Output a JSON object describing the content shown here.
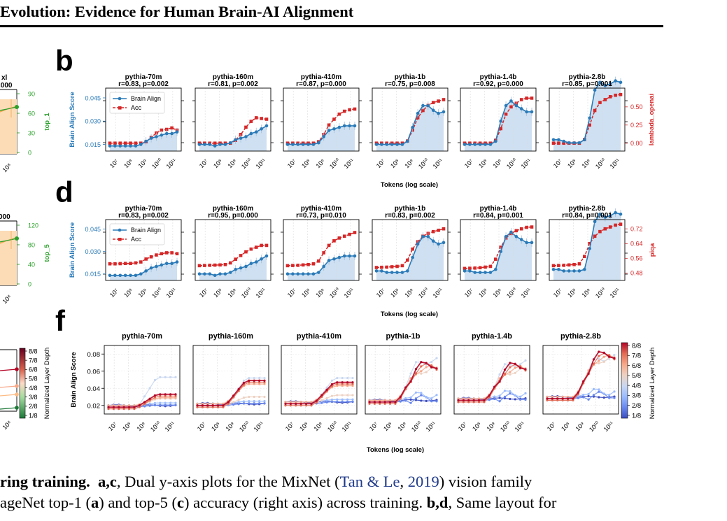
{
  "header": {
    "title": "Evolution: Evidence for Human Brain-AI Alignment"
  },
  "panel_labels": {
    "b": "b",
    "d": "d",
    "f": "f"
  },
  "left_fragments": {
    "row1_title_suffix": "xl",
    "row1_subtitle": ".000",
    "row1_right_ticks": [
      "90",
      "60",
      "30",
      "0"
    ],
    "row1_right_label": "top_1",
    "row1_x_tick": "10⁸",
    "row2_subtitle": "000",
    "row2_right_ticks": [
      "120",
      "80",
      "40",
      "0"
    ],
    "row2_right_label": "top_5",
    "row2_x_tick": "10⁸",
    "row3_colorbar_ticks": [
      "8/8",
      "7/8",
      "6/8",
      "5/8",
      "4/8",
      "3/8",
      "2/8",
      "1/8"
    ],
    "row3_colorbar_label": "Normalized Layer Depth",
    "row3_x_tick": "10⁸",
    "accent_orange": "#f5a54a",
    "accent_green": "#2ca02c"
  },
  "chart_data": [
    {
      "type": "line",
      "panel": "b",
      "xscale": "log",
      "xlabel": "Tokens (log scale)",
      "ylabel": "Brain Align Score",
      "ylabel_right": "lambada_openai",
      "yticks_left": [
        0.015,
        0.03,
        0.045
      ],
      "yticks_right": [
        0.0,
        0.25,
        0.5
      ],
      "xticks": [
        "10⁷",
        "10⁸",
        "10⁹",
        "10¹⁰",
        "10¹¹"
      ],
      "legend": [
        "Brain Align",
        "Acc"
      ],
      "legend_position": "top-left",
      "colors": {
        "brain": "#2a7ab8",
        "acc": "#d62728",
        "fill": "#c6dbef"
      },
      "subplots": [
        {
          "model": "pythia-70m",
          "stats": "r=0.83, p=0.002",
          "brain": [
            0.014,
            0.014,
            0.014,
            0.014,
            0.014,
            0.014,
            0.015,
            0.017,
            0.019,
            0.02,
            0.021,
            0.022,
            0.022,
            0.023
          ],
          "acc": [
            0.0,
            0.0,
            0.0,
            0.0,
            0.0,
            0.0,
            0.0,
            0.02,
            0.08,
            0.14,
            0.18,
            0.19,
            0.21,
            0.18
          ]
        },
        {
          "model": "pythia-160m",
          "stats": "r=0.81, p=0.002",
          "brain": [
            0.015,
            0.015,
            0.015,
            0.014,
            0.015,
            0.015,
            0.016,
            0.018,
            0.019,
            0.02,
            0.022,
            0.023,
            0.025,
            0.027
          ],
          "acc": [
            0.0,
            0.0,
            0.0,
            0.0,
            0.0,
            0.0,
            0.0,
            0.04,
            0.12,
            0.22,
            0.3,
            0.35,
            0.34,
            0.33
          ]
        },
        {
          "model": "pythia-410m",
          "stats": "r=0.87, p=0.000",
          "brain": [
            0.015,
            0.015,
            0.015,
            0.015,
            0.015,
            0.015,
            0.016,
            0.02,
            0.024,
            0.025,
            0.026,
            0.027,
            0.027,
            0.027
          ],
          "acc": [
            0.0,
            0.0,
            0.0,
            0.0,
            0.0,
            0.0,
            0.02,
            0.12,
            0.25,
            0.33,
            0.4,
            0.44,
            0.46,
            0.47
          ]
        },
        {
          "model": "pythia-1b",
          "stats": "r=0.75, p=0.008",
          "brain": [
            0.015,
            0.015,
            0.015,
            0.015,
            0.015,
            0.015,
            0.017,
            0.026,
            0.035,
            0.04,
            0.04,
            0.037,
            0.035,
            0.036
          ],
          "acc": [
            0.0,
            0.0,
            0.0,
            0.0,
            0.0,
            0.0,
            0.03,
            0.18,
            0.35,
            0.45,
            0.52,
            0.56,
            0.58,
            0.6
          ]
        },
        {
          "model": "pythia-1.4b",
          "stats": "r=0.92, p=0.000",
          "brain": [
            0.015,
            0.015,
            0.015,
            0.015,
            0.015,
            0.015,
            0.017,
            0.03,
            0.04,
            0.043,
            0.04,
            0.038,
            0.036,
            0.036
          ],
          "acc": [
            0.0,
            0.0,
            0.0,
            0.0,
            0.0,
            0.0,
            0.04,
            0.2,
            0.4,
            0.5,
            0.55,
            0.6,
            0.62,
            0.62
          ]
        },
        {
          "model": "pythia-2.8b",
          "stats": "r=0.85, p=0.001",
          "brain": [
            0.018,
            0.018,
            0.017,
            0.016,
            0.016,
            0.016,
            0.018,
            0.032,
            0.05,
            0.055,
            0.053,
            0.054,
            0.056,
            0.055
          ],
          "acc": [
            0.0,
            0.0,
            0.0,
            0.0,
            0.0,
            0.0,
            0.05,
            0.25,
            0.45,
            0.56,
            0.6,
            0.64,
            0.66,
            0.67
          ]
        }
      ]
    },
    {
      "type": "line",
      "panel": "d",
      "xscale": "log",
      "xlabel": "Tokens (log scale)",
      "ylabel": "Brain Align Score",
      "ylabel_right": "piqa",
      "yticks_left": [
        0.015,
        0.03,
        0.045
      ],
      "yticks_right": [
        0.48,
        0.56,
        0.64,
        0.72
      ],
      "xticks": [
        "10⁷",
        "10⁸",
        "10⁹",
        "10¹⁰",
        "10¹¹"
      ],
      "legend": [
        "Brain Align",
        "Acc"
      ],
      "legend_position": "top-left",
      "colors": {
        "brain": "#2a7ab8",
        "acc": "#d62728",
        "fill": "#c6dbef"
      },
      "subplots": [
        {
          "model": "pythia-70m",
          "stats": "r=0.83, p=0.002",
          "brain": [
            0.014,
            0.014,
            0.014,
            0.014,
            0.014,
            0.014,
            0.015,
            0.017,
            0.019,
            0.02,
            0.021,
            0.022,
            0.022,
            0.023
          ],
          "acc": [
            0.53,
            0.53,
            0.531,
            0.532,
            0.532,
            0.535,
            0.54,
            0.556,
            0.568,
            0.578,
            0.585,
            0.59,
            0.59,
            0.585
          ]
        },
        {
          "model": "pythia-160m",
          "stats": "r=0.95, p=0.000",
          "brain": [
            0.015,
            0.015,
            0.015,
            0.014,
            0.015,
            0.015,
            0.016,
            0.018,
            0.019,
            0.02,
            0.022,
            0.023,
            0.025,
            0.027
          ],
          "acc": [
            0.52,
            0.521,
            0.522,
            0.523,
            0.524,
            0.526,
            0.535,
            0.555,
            0.575,
            0.595,
            0.61,
            0.62,
            0.63,
            0.63
          ]
        },
        {
          "model": "pythia-410m",
          "stats": "r=0.73, p=0.010",
          "brain": [
            0.015,
            0.015,
            0.015,
            0.015,
            0.015,
            0.015,
            0.016,
            0.02,
            0.024,
            0.025,
            0.026,
            0.027,
            0.027,
            0.027
          ],
          "acc": [
            0.52,
            0.521,
            0.522,
            0.524,
            0.526,
            0.53,
            0.545,
            0.59,
            0.63,
            0.655,
            0.67,
            0.68,
            0.69,
            0.7
          ]
        },
        {
          "model": "pythia-1b",
          "stats": "r=0.83, p=0.002",
          "brain": [
            0.017,
            0.017,
            0.016,
            0.016,
            0.016,
            0.016,
            0.017,
            0.026,
            0.035,
            0.04,
            0.04,
            0.037,
            0.035,
            0.036
          ],
          "acc": [
            0.51,
            0.511,
            0.512,
            0.514,
            0.516,
            0.52,
            0.55,
            0.61,
            0.65,
            0.68,
            0.695,
            0.705,
            0.712,
            0.72
          ]
        },
        {
          "model": "pythia-1.4b",
          "stats": "r=0.84, p=0.001",
          "brain": [
            0.017,
            0.017,
            0.016,
            0.016,
            0.016,
            0.016,
            0.018,
            0.03,
            0.04,
            0.043,
            0.04,
            0.038,
            0.036,
            0.036
          ],
          "acc": [
            0.505,
            0.506,
            0.507,
            0.509,
            0.512,
            0.516,
            0.555,
            0.62,
            0.67,
            0.695,
            0.71,
            0.72,
            0.728,
            0.73
          ]
        },
        {
          "model": "pythia-2.8b",
          "stats": "r=0.84, p=0.001",
          "brain": [
            0.018,
            0.018,
            0.017,
            0.017,
            0.017,
            0.017,
            0.018,
            0.032,
            0.05,
            0.055,
            0.053,
            0.054,
            0.056,
            0.055
          ],
          "acc": [
            0.52,
            0.521,
            0.522,
            0.524,
            0.526,
            0.53,
            0.57,
            0.64,
            0.68,
            0.705,
            0.72,
            0.73,
            0.74,
            0.745
          ]
        }
      ]
    },
    {
      "type": "line",
      "panel": "f",
      "xscale": "log",
      "xlabel": "Tokens (log scale)",
      "ylabel": "Brain Align Score",
      "yticks_left": [
        0.02,
        0.04,
        0.06,
        0.08
      ],
      "xticks": [
        "10⁷",
        "10⁸",
        "10⁹",
        "10¹⁰",
        "10¹¹"
      ],
      "colorbar_label": "Normalized Layer Depth",
      "colorbar_ticks": [
        "8/8",
        "7/8",
        "6/8",
        "5/8",
        "4/8",
        "3/8",
        "2/8",
        "1/8"
      ],
      "depth_colors": [
        "#3b4cc0",
        "#6788ee",
        "#9abbff",
        "#c9d7f0",
        "#edd1c2",
        "#f7a889",
        "#e26952",
        "#b40426"
      ],
      "subplots": [
        {
          "model": "pythia-70m",
          "top": 0.053,
          "high": 0.033,
          "base": 0.018
        },
        {
          "model": "pythia-160m",
          "top": 0.052,
          "high": 0.049,
          "base": 0.02
        },
        {
          "model": "pythia-410m",
          "top": 0.052,
          "high": 0.047,
          "base": 0.022
        },
        {
          "model": "pythia-1b",
          "top": 0.078,
          "high": 0.063,
          "base": 0.024
        },
        {
          "model": "pythia-1.4b",
          "top": 0.075,
          "high": 0.062,
          "base": 0.026
        },
        {
          "model": "pythia-2.8b",
          "top": 0.082,
          "high": 0.075,
          "base": 0.028
        }
      ]
    }
  ],
  "caption": {
    "line1": {
      "bold": "ring training.",
      "bold2": "a,c",
      "text": ", Dual y-axis plots for the MixNet (",
      "cite_author": "Tan & Le",
      "sep": ", ",
      "cite_year": "2019",
      "end": ") vision family"
    },
    "line2": {
      "pre": "ageNet top-1 (",
      "a": "a",
      "mid": ") and top-5 (",
      "c": "c",
      "post": ") accuracy (right axis) across training. ",
      "bd": "b,d",
      "end": ", Same layout for"
    }
  }
}
